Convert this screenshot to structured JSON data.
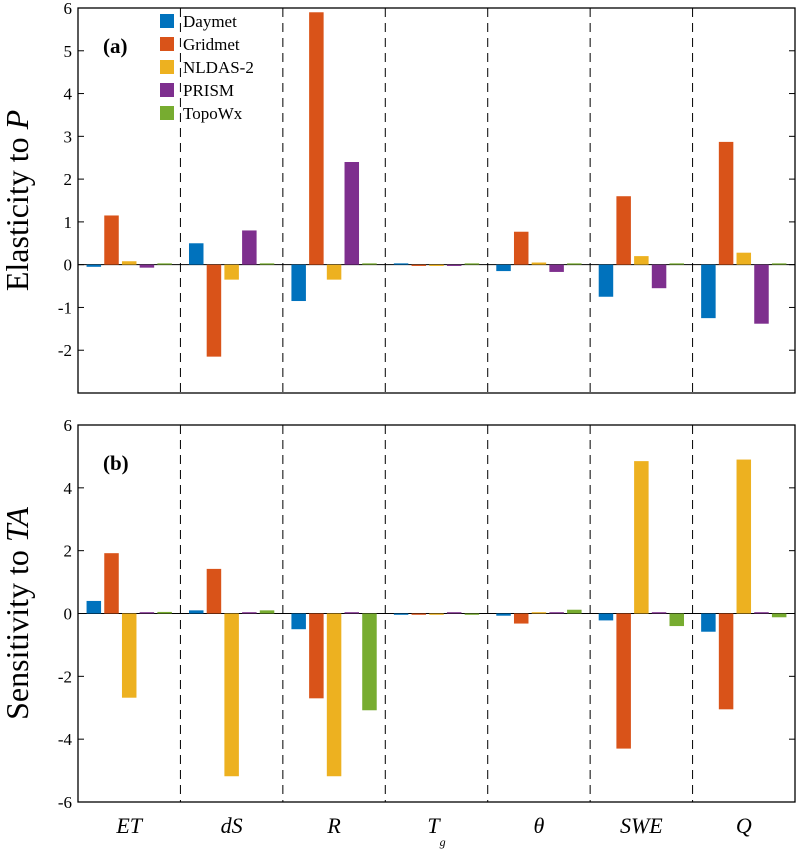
{
  "chart_data": {
    "type": "bar",
    "categories": [
      "ET",
      "dS",
      "R",
      "T",
      "θ",
      "SWE",
      "Q"
    ],
    "category_subscripts": [
      "",
      "",
      "",
      "g",
      "",
      "",
      ""
    ],
    "legend": {
      "placement": "top-left inside panel (a)",
      "entries": [
        "Daymet",
        "Gridmet",
        "NLDAS-2",
        "PRISM",
        "TopoWx"
      ]
    },
    "colors": [
      "#0072BD",
      "#D95319",
      "#EDB120",
      "#7E2F8E",
      "#77AC30"
    ],
    "panels": [
      {
        "tag": "(a)",
        "ylabel": "Elasticity to P",
        "ylabel_prefix": "Elasticity to ",
        "ylabel_var": "P",
        "ylim": [
          -3,
          6
        ],
        "yticks": [
          -2,
          -1,
          0,
          1,
          2,
          3,
          4,
          5,
          6
        ],
        "ytick_labels": [
          "-2",
          "-1",
          "0",
          "1",
          "2",
          "3",
          "4",
          "5",
          "6"
        ],
        "series": [
          {
            "name": "Daymet",
            "values": [
              -0.05,
              0.5,
              -0.85,
              0.02,
              -0.15,
              -0.75,
              -1.25
            ]
          },
          {
            "name": "Gridmet",
            "values": [
              1.15,
              -2.15,
              5.9,
              -0.02,
              0.77,
              1.6,
              2.87
            ]
          },
          {
            "name": "NLDAS-2",
            "values": [
              0.08,
              -0.35,
              -0.35,
              -0.02,
              0.05,
              0.2,
              0.28
            ]
          },
          {
            "name": "PRISM",
            "values": [
              -0.07,
              0.8,
              2.4,
              -0.02,
              -0.17,
              -0.55,
              -1.38
            ]
          },
          {
            "name": "TopoWx",
            "values": [
              0,
              0,
              0,
              0,
              0,
              0,
              0
            ]
          }
        ]
      },
      {
        "tag": "(b)",
        "ylabel": "Sensitivity to TA",
        "ylabel_prefix": "Sensitivity to ",
        "ylabel_var": "TA",
        "ylim": [
          -6,
          6
        ],
        "yticks": [
          -6,
          -4,
          -2,
          0,
          2,
          4,
          6
        ],
        "ytick_labels": [
          "-6",
          "-4",
          "-2",
          "0",
          "2",
          "4",
          "6"
        ],
        "series": [
          {
            "name": "Daymet",
            "values": [
              0.4,
              0.1,
              -0.5,
              -0.02,
              -0.07,
              -0.22,
              -0.58
            ]
          },
          {
            "name": "Gridmet",
            "values": [
              1.92,
              1.42,
              -2.7,
              -0.02,
              -0.32,
              -4.3,
              -3.05
            ]
          },
          {
            "name": "NLDAS-2",
            "values": [
              -2.68,
              -5.18,
              -5.18,
              -0.02,
              0.0,
              4.85,
              4.9
            ]
          },
          {
            "name": "PRISM",
            "values": [
              0.0,
              0.0,
              0.0,
              0.0,
              0.0,
              0.02,
              0.0
            ]
          },
          {
            "name": "TopoWx",
            "values": [
              0.05,
              0.1,
              -3.08,
              -0.02,
              0.12,
              -0.4,
              -0.12
            ]
          }
        ]
      }
    ],
    "grid": false,
    "separators": "dashed vertical lines between categories"
  }
}
